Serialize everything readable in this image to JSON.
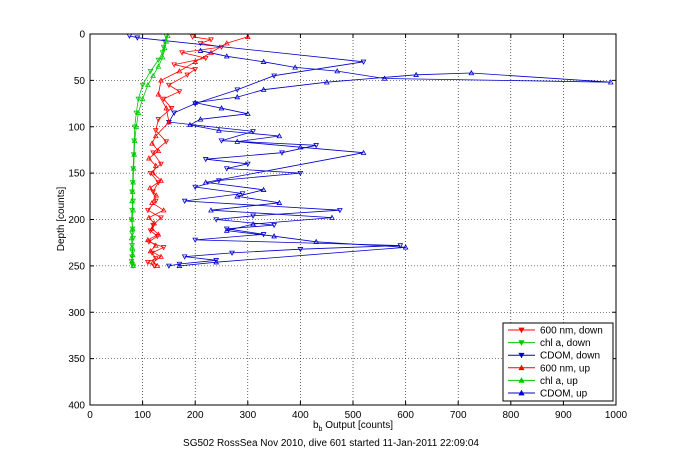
{
  "chart_data": {
    "type": "scatter",
    "caption": "SG502 RossSea Nov 2010, dive 601 started 11-Jan-2011 22:09:04",
    "xlabel_main": "b",
    "xlabel_sub": "b",
    "xlabel_rest": " Output [counts]",
    "ylabel": "Depth [counts]",
    "xlim": [
      0,
      1000
    ],
    "ylim": [
      400,
      0
    ],
    "y_reversed": true,
    "grid": true,
    "legend_placement": "bottom-right",
    "xticks": [
      "0",
      "100",
      "200",
      "300",
      "400",
      "500",
      "600",
      "700",
      "800",
      "900",
      "1000"
    ],
    "yticks": [
      "0",
      "50",
      "100",
      "150",
      "200",
      "250",
      "300",
      "350",
      "400"
    ],
    "series": [
      {
        "name": "600 nm, down",
        "color": "#ff0000",
        "marker": "triangle-down",
        "x": [
          195,
          230,
          210,
          250,
          175,
          220,
          160,
          200,
          185,
          150,
          170,
          140,
          155,
          130,
          125,
          145,
          120,
          135,
          115,
          130,
          120,
          125,
          110,
          135,
          120,
          115,
          128,
          112,
          140,
          118,
          125,
          110,
          122
        ],
        "y": [
          3,
          6,
          10,
          14,
          20,
          26,
          33,
          38,
          44,
          55,
          62,
          70,
          80,
          92,
          104,
          116,
          128,
          140,
          150,
          160,
          170,
          180,
          190,
          198,
          206,
          212,
          218,
          224,
          230,
          236,
          242,
          246,
          250
        ]
      },
      {
        "name": "chl a, down",
        "color": "#00c800",
        "marker": "triangle-down",
        "x": [
          145,
          142,
          140,
          138,
          130,
          115,
          100,
          92,
          88,
          85,
          84,
          83,
          82,
          81,
          80,
          82,
          80,
          79,
          81,
          80,
          82,
          80,
          81,
          80,
          79,
          80,
          82
        ],
        "y": [
          2,
          8,
          14,
          20,
          28,
          40,
          55,
          70,
          85,
          100,
          115,
          130,
          145,
          160,
          170,
          180,
          190,
          200,
          210,
          215,
          220,
          228,
          235,
          240,
          245,
          248,
          250
        ]
      },
      {
        "name": "CDOM, down",
        "color": "#0000cc",
        "marker": "triangle-down",
        "x": [
          75,
          90,
          520,
          350,
          280,
          200,
          160,
          150,
          310,
          250,
          430,
          365,
          220,
          300,
          260,
          400,
          245,
          200,
          290,
          180,
          475,
          310,
          240,
          350,
          260,
          330,
          200,
          590,
          400,
          270,
          180,
          240,
          170,
          150
        ],
        "y": [
          2,
          4,
          30,
          45,
          60,
          75,
          85,
          95,
          105,
          115,
          120,
          128,
          135,
          140,
          145,
          150,
          158,
          165,
          172,
          180,
          190,
          196,
          200,
          206,
          210,
          216,
          222,
          228,
          232,
          236,
          240,
          244,
          248,
          250
        ]
      },
      {
        "name": "600 nm, up",
        "color": "#ff0000",
        "marker": "triangle-up",
        "x": [
          128,
          120,
          135,
          115,
          125,
          110,
          130,
          118,
          122,
          112,
          140,
          118,
          126,
          114,
          135,
          120,
          125,
          112,
          130,
          118,
          125,
          150,
          145,
          130,
          135,
          170,
          200,
          230,
          260,
          300
        ],
        "y": [
          250,
          246,
          240,
          234,
          228,
          222,
          216,
          210,
          204,
          198,
          190,
          182,
          174,
          166,
          158,
          150,
          142,
          134,
          126,
          118,
          110,
          95,
          80,
          65,
          50,
          40,
          30,
          20,
          10,
          3
        ]
      },
      {
        "name": "chl a, up",
        "color": "#00c800",
        "marker": "triangle-up",
        "x": [
          82,
          80,
          81,
          80,
          79,
          81,
          80,
          82,
          80,
          81,
          82,
          83,
          84,
          85,
          88,
          92,
          100,
          110,
          120,
          130,
          138,
          142,
          145,
          148
        ],
        "y": [
          250,
          245,
          238,
          230,
          220,
          210,
          200,
          190,
          180,
          170,
          160,
          145,
          130,
          115,
          100,
          85,
          70,
          55,
          45,
          35,
          25,
          15,
          8,
          2
        ]
      },
      {
        "name": "CDOM, up",
        "color": "#0000cc",
        "marker": "triangle-up",
        "x": [
          170,
          240,
          600,
          430,
          350,
          260,
          310,
          460,
          230,
          360,
          280,
          330,
          220,
          520,
          400,
          280,
          360,
          245,
          190,
          210,
          300,
          250,
          200,
          280,
          330,
          450,
          620,
          725,
          990,
          560,
          470,
          390,
          330,
          260,
          210
        ],
        "y": [
          250,
          246,
          230,
          224,
          218,
          212,
          205,
          198,
          190,
          182,
          175,
          168,
          160,
          128,
          122,
          116,
          110,
          104,
          98,
          92,
          86,
          80,
          74,
          68,
          60,
          52,
          44,
          42,
          52,
          48,
          40,
          36,
          30,
          24,
          18
        ]
      }
    ]
  }
}
